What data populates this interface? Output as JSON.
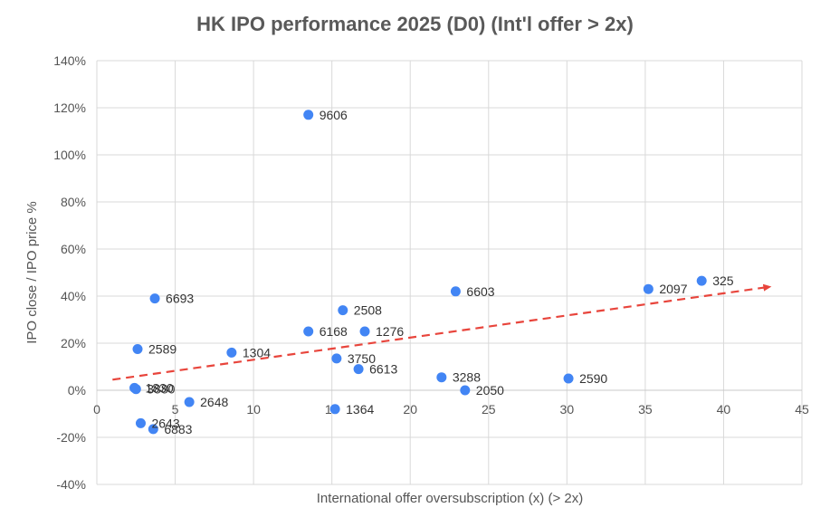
{
  "chart_data": {
    "type": "scatter",
    "title": "HK IPO performance 2025 (D0) (Int'l offer > 2x)",
    "xlabel": "International offer oversubscription (x) (> 2x)",
    "ylabel": "IPO close  / IPO price %",
    "xlim": [
      0,
      45
    ],
    "ylim": [
      -40,
      140
    ],
    "x_ticks": [
      0,
      5,
      10,
      15,
      20,
      25,
      30,
      35,
      40,
      45
    ],
    "x_tick_labels": [
      "0",
      "5",
      "10",
      "15",
      "20",
      "25",
      "30",
      "35",
      "40",
      "45"
    ],
    "y_ticks": [
      -40,
      -20,
      0,
      20,
      40,
      60,
      80,
      100,
      120,
      140
    ],
    "y_tick_labels": [
      "-40%",
      "-20%",
      "0%",
      "20%",
      "40%",
      "60%",
      "80%",
      "100%",
      "120%",
      "140%"
    ],
    "grid": true,
    "point_color": "#4285f4",
    "trend_color": "#e8453c",
    "points": [
      {
        "label": "9606",
        "x": 13.5,
        "y": 117
      },
      {
        "label": "6693",
        "x": 3.7,
        "y": 39
      },
      {
        "label": "2508",
        "x": 15.7,
        "y": 34
      },
      {
        "label": "6603",
        "x": 22.9,
        "y": 42
      },
      {
        "label": "2097",
        "x": 35.2,
        "y": 43
      },
      {
        "label": "325",
        "x": 38.6,
        "y": 46.5
      },
      {
        "label": "6168",
        "x": 13.5,
        "y": 25
      },
      {
        "label": "1276",
        "x": 17.1,
        "y": 25
      },
      {
        "label": "2589",
        "x": 2.6,
        "y": 17.5
      },
      {
        "label": "1304",
        "x": 8.6,
        "y": 16
      },
      {
        "label": "3750",
        "x": 15.3,
        "y": 13.5
      },
      {
        "label": "6613",
        "x": 16.7,
        "y": 9
      },
      {
        "label": "3288",
        "x": 22.0,
        "y": 5.5
      },
      {
        "label": "2590",
        "x": 30.1,
        "y": 5
      },
      {
        "label": "2050",
        "x": 23.5,
        "y": 0
      },
      {
        "label": "1830",
        "x": 2.4,
        "y": 1
      },
      {
        "label": "3880",
        "x": 2.5,
        "y": 0.5
      },
      {
        "label": "2648",
        "x": 5.9,
        "y": -5
      },
      {
        "label": "1364",
        "x": 15.2,
        "y": -8
      },
      {
        "label": "2643",
        "x": 2.8,
        "y": -14
      },
      {
        "label": "6883",
        "x": 3.6,
        "y": -16.5
      }
    ],
    "trendline": {
      "type": "linear",
      "x": [
        1,
        43
      ],
      "y": [
        4.5,
        44
      ]
    }
  }
}
